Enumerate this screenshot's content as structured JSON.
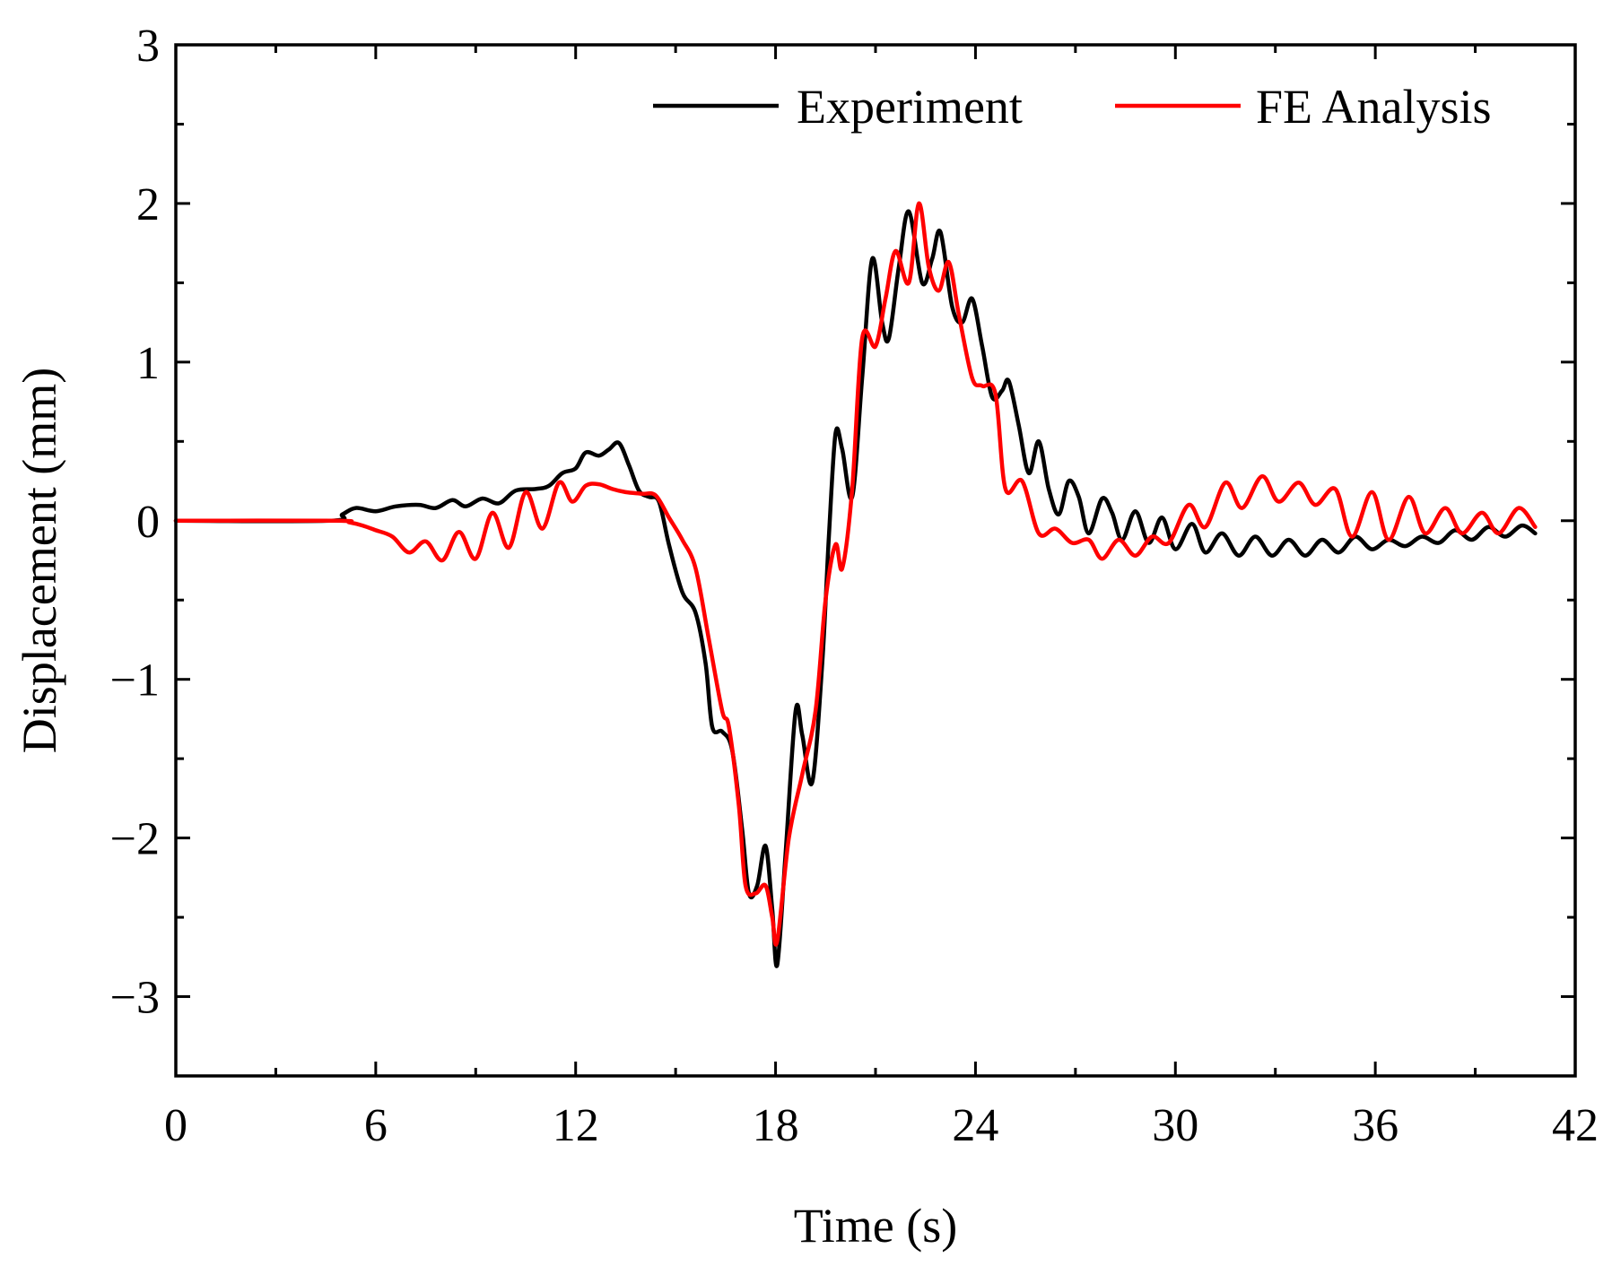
{
  "chart_data": {
    "type": "line",
    "title": "",
    "xlabel": "Time (s)",
    "ylabel": "Displacement (mm)",
    "xlim": [
      0,
      42
    ],
    "ylim": [
      -3.5,
      3
    ],
    "xticks": [
      0,
      6,
      12,
      18,
      24,
      30,
      36,
      42
    ],
    "yticks": [
      -3,
      -2,
      -1,
      0,
      1,
      2,
      3
    ],
    "xtick_labels": [
      "0",
      "6",
      "12",
      "18",
      "24",
      "30",
      "36",
      "42"
    ],
    "ytick_labels": [
      "−3",
      "−2",
      "−1",
      "0",
      "1",
      "2",
      "3"
    ],
    "grid": false,
    "legend_position": "top-right",
    "series": [
      {
        "name": "Experiment",
        "color": "#000000",
        "points": [
          [
            0,
            0
          ],
          [
            4.6,
            0
          ],
          [
            5.0,
            0.04
          ],
          [
            5.4,
            0.08
          ],
          [
            6.0,
            0.06
          ],
          [
            6.6,
            0.09
          ],
          [
            7.3,
            0.1
          ],
          [
            7.8,
            0.08
          ],
          [
            8.3,
            0.13
          ],
          [
            8.7,
            0.09
          ],
          [
            9.2,
            0.14
          ],
          [
            9.7,
            0.11
          ],
          [
            10.2,
            0.19
          ],
          [
            10.8,
            0.2
          ],
          [
            11.2,
            0.22
          ],
          [
            11.6,
            0.3
          ],
          [
            12.0,
            0.33
          ],
          [
            12.3,
            0.43
          ],
          [
            12.7,
            0.41
          ],
          [
            13.0,
            0.45
          ],
          [
            13.3,
            0.49
          ],
          [
            13.6,
            0.35
          ],
          [
            13.9,
            0.19
          ],
          [
            14.2,
            0.15
          ],
          [
            14.5,
            0.12
          ],
          [
            14.8,
            -0.15
          ],
          [
            15.2,
            -0.45
          ],
          [
            15.6,
            -0.58
          ],
          [
            15.9,
            -0.9
          ],
          [
            16.1,
            -1.3
          ],
          [
            16.4,
            -1.33
          ],
          [
            16.7,
            -1.45
          ],
          [
            17.0,
            -1.95
          ],
          [
            17.2,
            -2.35
          ],
          [
            17.45,
            -2.3
          ],
          [
            17.7,
            -2.05
          ],
          [
            17.9,
            -2.45
          ],
          [
            18.05,
            -2.8
          ],
          [
            18.3,
            -2.1
          ],
          [
            18.6,
            -1.2
          ],
          [
            18.8,
            -1.35
          ],
          [
            19.1,
            -1.65
          ],
          [
            19.4,
            -0.9
          ],
          [
            19.6,
            -0.1
          ],
          [
            19.8,
            0.55
          ],
          [
            20.0,
            0.45
          ],
          [
            20.3,
            0.15
          ],
          [
            20.6,
            0.9
          ],
          [
            20.9,
            1.65
          ],
          [
            21.2,
            1.25
          ],
          [
            21.4,
            1.15
          ],
          [
            21.7,
            1.6
          ],
          [
            22.0,
            1.95
          ],
          [
            22.4,
            1.5
          ],
          [
            22.7,
            1.65
          ],
          [
            22.95,
            1.82
          ],
          [
            23.3,
            1.35
          ],
          [
            23.6,
            1.25
          ],
          [
            23.9,
            1.4
          ],
          [
            24.2,
            1.1
          ],
          [
            24.5,
            0.78
          ],
          [
            24.8,
            0.82
          ],
          [
            25.0,
            0.88
          ],
          [
            25.3,
            0.6
          ],
          [
            25.6,
            0.3
          ],
          [
            25.9,
            0.5
          ],
          [
            26.2,
            0.2
          ],
          [
            26.5,
            0.04
          ],
          [
            26.8,
            0.25
          ],
          [
            27.1,
            0.15
          ],
          [
            27.4,
            -0.08
          ],
          [
            27.8,
            0.14
          ],
          [
            28.1,
            0.05
          ],
          [
            28.4,
            -0.12
          ],
          [
            28.8,
            0.06
          ],
          [
            29.2,
            -0.14
          ],
          [
            29.6,
            0.02
          ],
          [
            30.0,
            -0.18
          ],
          [
            30.5,
            -0.02
          ],
          [
            30.9,
            -0.2
          ],
          [
            31.4,
            -0.08
          ],
          [
            31.9,
            -0.22
          ],
          [
            32.4,
            -0.1
          ],
          [
            32.9,
            -0.22
          ],
          [
            33.4,
            -0.12
          ],
          [
            33.9,
            -0.22
          ],
          [
            34.4,
            -0.12
          ],
          [
            34.9,
            -0.2
          ],
          [
            35.4,
            -0.1
          ],
          [
            35.9,
            -0.18
          ],
          [
            36.4,
            -0.12
          ],
          [
            36.9,
            -0.16
          ],
          [
            37.4,
            -0.1
          ],
          [
            37.9,
            -0.14
          ],
          [
            38.4,
            -0.06
          ],
          [
            38.9,
            -0.12
          ],
          [
            39.4,
            -0.04
          ],
          [
            39.9,
            -0.1
          ],
          [
            40.4,
            -0.03
          ],
          [
            40.8,
            -0.08
          ]
        ]
      },
      {
        "name": "FE Analysis",
        "color": "#ff0000",
        "points": [
          [
            0,
            0
          ],
          [
            4.8,
            0
          ],
          [
            5.2,
            -0.01
          ],
          [
            5.6,
            -0.03
          ],
          [
            6.0,
            -0.06
          ],
          [
            6.5,
            -0.1
          ],
          [
            7.0,
            -0.2
          ],
          [
            7.5,
            -0.13
          ],
          [
            8.0,
            -0.25
          ],
          [
            8.5,
            -0.07
          ],
          [
            9.0,
            -0.24
          ],
          [
            9.5,
            0.05
          ],
          [
            10.0,
            -0.17
          ],
          [
            10.5,
            0.18
          ],
          [
            11.0,
            -0.05
          ],
          [
            11.5,
            0.24
          ],
          [
            11.9,
            0.12
          ],
          [
            12.3,
            0.22
          ],
          [
            12.7,
            0.23
          ],
          [
            13.1,
            0.2
          ],
          [
            13.5,
            0.18
          ],
          [
            14.0,
            0.17
          ],
          [
            14.4,
            0.16
          ],
          [
            14.8,
            0.02
          ],
          [
            15.2,
            -0.12
          ],
          [
            15.6,
            -0.3
          ],
          [
            16.0,
            -0.75
          ],
          [
            16.4,
            -1.2
          ],
          [
            16.6,
            -1.3
          ],
          [
            16.9,
            -1.8
          ],
          [
            17.1,
            -2.3
          ],
          [
            17.4,
            -2.35
          ],
          [
            17.7,
            -2.3
          ],
          [
            17.9,
            -2.5
          ],
          [
            18.05,
            -2.65
          ],
          [
            18.4,
            -2.0
          ],
          [
            18.8,
            -1.6
          ],
          [
            19.2,
            -1.2
          ],
          [
            19.5,
            -0.5
          ],
          [
            19.8,
            -0.15
          ],
          [
            20.0,
            -0.3
          ],
          [
            20.3,
            0.2
          ],
          [
            20.6,
            1.15
          ],
          [
            21.0,
            1.1
          ],
          [
            21.3,
            1.4
          ],
          [
            21.6,
            1.7
          ],
          [
            22.0,
            1.5
          ],
          [
            22.3,
            2.0
          ],
          [
            22.6,
            1.6
          ],
          [
            22.9,
            1.45
          ],
          [
            23.2,
            1.63
          ],
          [
            23.5,
            1.3
          ],
          [
            23.9,
            0.9
          ],
          [
            24.2,
            0.85
          ],
          [
            24.6,
            0.8
          ],
          [
            24.9,
            0.2
          ],
          [
            25.4,
            0.25
          ],
          [
            25.9,
            -0.08
          ],
          [
            26.4,
            -0.05
          ],
          [
            26.9,
            -0.14
          ],
          [
            27.4,
            -0.12
          ],
          [
            27.8,
            -0.24
          ],
          [
            28.3,
            -0.12
          ],
          [
            28.8,
            -0.22
          ],
          [
            29.3,
            -0.1
          ],
          [
            29.8,
            -0.14
          ],
          [
            30.4,
            0.1
          ],
          [
            30.9,
            -0.04
          ],
          [
            31.5,
            0.24
          ],
          [
            32.0,
            0.08
          ],
          [
            32.6,
            0.28
          ],
          [
            33.1,
            0.12
          ],
          [
            33.7,
            0.24
          ],
          [
            34.2,
            0.1
          ],
          [
            34.8,
            0.2
          ],
          [
            35.3,
            -0.1
          ],
          [
            35.9,
            0.18
          ],
          [
            36.4,
            -0.12
          ],
          [
            37.0,
            0.15
          ],
          [
            37.5,
            -0.08
          ],
          [
            38.1,
            0.08
          ],
          [
            38.6,
            -0.08
          ],
          [
            39.2,
            0.05
          ],
          [
            39.7,
            -0.08
          ],
          [
            40.3,
            0.08
          ],
          [
            40.8,
            -0.04
          ]
        ]
      }
    ]
  }
}
